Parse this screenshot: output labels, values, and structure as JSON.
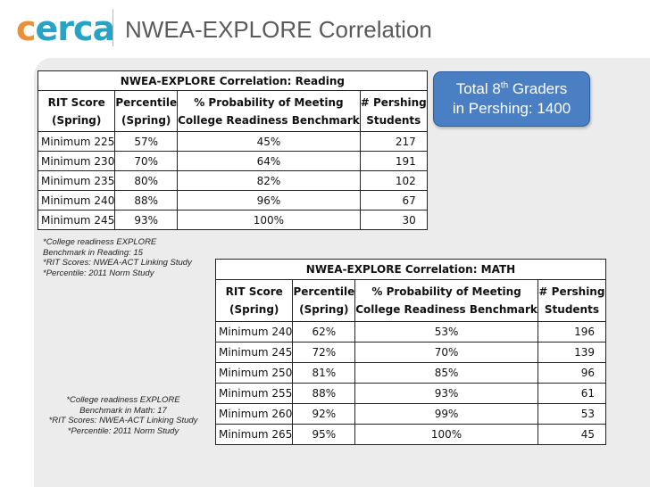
{
  "header": {
    "logo_first": "c",
    "logo_rest": "erca",
    "title": "NWEA-EXPLORE Correlation"
  },
  "callout": {
    "line1_prefix": "Total 8",
    "line1_sup": "th",
    "line1_suffix": " Graders",
    "line2": "in Pershing: 1400"
  },
  "reading": {
    "title": "NWEA-EXPLORE Correlation: Reading",
    "headers": [
      {
        "line1": "RIT Score",
        "line2": "(Spring)"
      },
      {
        "line1": "Percentile",
        "line2": "(Spring)"
      },
      {
        "line1": "% Probability of Meeting",
        "line2": "College Readiness Benchmark"
      },
      {
        "line1": "# Pershing",
        "line2": "Students"
      }
    ],
    "rows": [
      [
        "Minimum 225",
        "57%",
        "45%",
        "217"
      ],
      [
        "Minimum 230",
        "70%",
        "64%",
        "191"
      ],
      [
        "Minimum 235",
        "80%",
        "82%",
        "102"
      ],
      [
        "Minimum 240",
        "88%",
        "96%",
        "67"
      ],
      [
        "Minimum 245",
        "93%",
        "100%",
        "30"
      ]
    ],
    "notes": [
      "*College readiness EXPLORE",
      "Benchmark in Reading: 15",
      "*RIT Scores: NWEA-ACT Linking Study",
      "*Percentile: 2011 Norm Study"
    ]
  },
  "math": {
    "title": "NWEA-EXPLORE Correlation: MATH",
    "headers": [
      {
        "line1": "RIT Score",
        "line2": "(Spring)"
      },
      {
        "line1": "Percentile",
        "line2": "(Spring)"
      },
      {
        "line1": "% Probability of Meeting",
        "line2": "College Readiness Benchmark"
      },
      {
        "line1": "# Pershing",
        "line2": "Students"
      }
    ],
    "rows": [
      [
        "Minimum 240",
        "62%",
        "53%",
        "196"
      ],
      [
        "Minimum 245",
        "72%",
        "70%",
        "139"
      ],
      [
        "Minimum 250",
        "81%",
        "85%",
        "96"
      ],
      [
        "Minimum 255",
        "88%",
        "93%",
        "61"
      ],
      [
        "Minimum 260",
        "92%",
        "99%",
        "53"
      ],
      [
        "Minimum 265",
        "95%",
        "100%",
        "45"
      ]
    ],
    "notes": [
      "*College readiness EXPLORE",
      "Benchmark in Math: 17",
      "*RIT Scores: NWEA-ACT Linking Study",
      "*Percentile: 2011 Norm Study"
    ]
  }
}
